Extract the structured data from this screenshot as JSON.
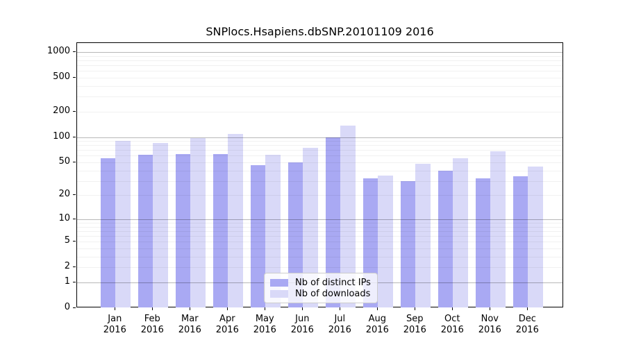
{
  "title": "SNPlocs.Hsapiens.dbSNP.20101109 2016",
  "chart_data": {
    "type": "bar",
    "title": "SNPlocs.Hsapiens.dbSNP.20101109 2016",
    "categories": [
      "Jan",
      "Feb",
      "Mar",
      "Apr",
      "May",
      "Jun",
      "Jul",
      "Aug",
      "Sep",
      "Oct",
      "Nov",
      "Dec"
    ],
    "category_year": "2016",
    "series": [
      {
        "name": "Nb of distinct IPs",
        "color": "#a9a9f3",
        "values": [
          56,
          62,
          63,
          63,
          46,
          50,
          100,
          32,
          30,
          40,
          32,
          34
        ]
      },
      {
        "name": "Nb of downloads",
        "color": "#d9d9f8",
        "values": [
          90,
          85,
          98,
          108,
          62,
          75,
          136,
          35,
          48,
          56,
          68,
          45
        ]
      }
    ],
    "xlabel": "",
    "ylabel": "",
    "y_axis": {
      "scale": "log1p",
      "ylim": [
        0,
        1000
      ],
      "ticks": [
        0,
        1,
        2,
        5,
        10,
        20,
        50,
        100,
        200,
        500,
        1000
      ],
      "major_gridlines": [
        1,
        10,
        100,
        1000
      ],
      "minor_gridlines": [
        2,
        3,
        4,
        5,
        6,
        7,
        8,
        9,
        20,
        30,
        40,
        50,
        60,
        70,
        80,
        90,
        200,
        300,
        400,
        500,
        600,
        700,
        800,
        900
      ]
    },
    "grid": true,
    "legend_position": "lower-center"
  },
  "colors": {
    "background": "#ffffff",
    "axis": "#000000",
    "major_grid": "#b8b8b8",
    "minor_grid": "#ebebeb",
    "series_ips": "#a9a9f3",
    "series_downloads": "#d9d9f8"
  }
}
